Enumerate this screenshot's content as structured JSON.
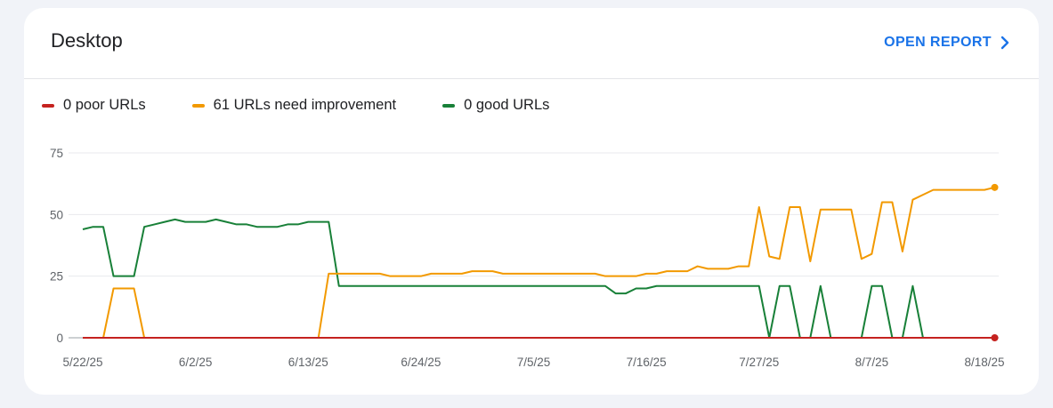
{
  "card": {
    "title": "Desktop",
    "open_report_label": "OPEN REPORT",
    "chevron_icon": "chevron-right-icon"
  },
  "chart_data": {
    "type": "line",
    "title": "",
    "xlabel": "",
    "ylabel": "",
    "ylim": [
      0,
      75
    ],
    "yticks": [
      0,
      25,
      50,
      75
    ],
    "grid": true,
    "legend_position": "top-left",
    "x_tick_labels": [
      "5/22/25",
      "6/2/25",
      "6/13/25",
      "6/24/25",
      "7/5/25",
      "7/16/25",
      "7/27/25",
      "8/7/25",
      "8/18/25"
    ],
    "x_tick_days": [
      0,
      11,
      22,
      33,
      44,
      55,
      66,
      77,
      88
    ],
    "series": [
      {
        "name": "0 poor URLs",
        "color": "#c5221f",
        "values": [
          0,
          0,
          0,
          0,
          0,
          0,
          0,
          0,
          0,
          0,
          0,
          0,
          0,
          0,
          0,
          0,
          0,
          0,
          0,
          0,
          0,
          0,
          0,
          0,
          0,
          0,
          0,
          0,
          0,
          0,
          0,
          0,
          0,
          0,
          0,
          0,
          0,
          0,
          0,
          0,
          0,
          0,
          0,
          0,
          0,
          0,
          0,
          0,
          0,
          0,
          0,
          0,
          0,
          0,
          0,
          0,
          0,
          0,
          0,
          0,
          0,
          0,
          0,
          0,
          0,
          0,
          0,
          0,
          0,
          0,
          0,
          0,
          0,
          0,
          0,
          0,
          0,
          0,
          0,
          0,
          0,
          0,
          0,
          0,
          0,
          0,
          0,
          0,
          0,
          0
        ]
      },
      {
        "name": "61 URLs need improvement",
        "color": "#f29900",
        "values": [
          0,
          0,
          0,
          20,
          20,
          20,
          0,
          0,
          0,
          0,
          0,
          0,
          0,
          0,
          0,
          0,
          0,
          0,
          0,
          0,
          0,
          0,
          0,
          0,
          26,
          26,
          26,
          26,
          26,
          26,
          25,
          25,
          25,
          25,
          26,
          26,
          26,
          26,
          27,
          27,
          27,
          26,
          26,
          26,
          26,
          26,
          26,
          26,
          26,
          26,
          26,
          25,
          25,
          25,
          25,
          26,
          26,
          27,
          27,
          27,
          29,
          28,
          28,
          28,
          29,
          29,
          53,
          33,
          32,
          53,
          53,
          31,
          52,
          52,
          52,
          52,
          32,
          34,
          55,
          55,
          35,
          56,
          58,
          60,
          60,
          60,
          60,
          60,
          60,
          61
        ]
      },
      {
        "name": "0 good URLs",
        "color": "#188038",
        "values": [
          44,
          45,
          45,
          25,
          25,
          25,
          45,
          46,
          47,
          48,
          47,
          47,
          47,
          48,
          47,
          46,
          46,
          45,
          45,
          45,
          46,
          46,
          47,
          47,
          47,
          21,
          21,
          21,
          21,
          21,
          21,
          21,
          21,
          21,
          21,
          21,
          21,
          21,
          21,
          21,
          21,
          21,
          21,
          21,
          21,
          21,
          21,
          21,
          21,
          21,
          21,
          21,
          18,
          18,
          20,
          20,
          21,
          21,
          21,
          21,
          21,
          21,
          21,
          21,
          21,
          21,
          21,
          0,
          21,
          21,
          0,
          0,
          21,
          0,
          0,
          0,
          0,
          21,
          21,
          0,
          0,
          21,
          0,
          0,
          0,
          0,
          0,
          0,
          0,
          0
        ]
      }
    ],
    "end_markers": [
      "0 poor URLs",
      "61 URLs need improvement"
    ]
  }
}
